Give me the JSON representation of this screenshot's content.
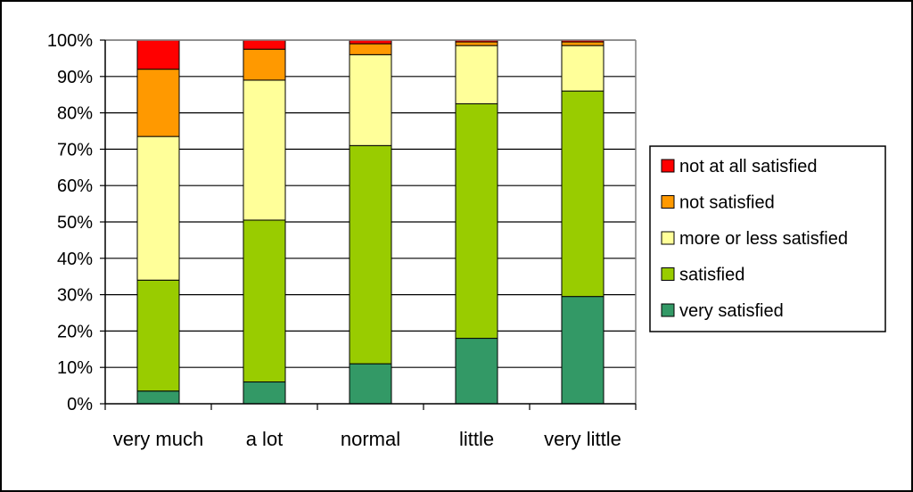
{
  "chart_data": {
    "type": "bar",
    "stacked": true,
    "percent": true,
    "categories": [
      "very much",
      "a lot",
      "normal",
      "little",
      "very little"
    ],
    "ylim": [
      0,
      100
    ],
    "yticks": [
      "0%",
      "10%",
      "20%",
      "30%",
      "40%",
      "50%",
      "60%",
      "70%",
      "80%",
      "90%",
      "100%"
    ],
    "grid": true,
    "legend": "right",
    "series": [
      {
        "name": "very satisfied",
        "color": "#339966",
        "values": [
          3.5,
          6,
          11,
          18,
          29.5
        ]
      },
      {
        "name": "satisfied",
        "color": "#99CC00",
        "values": [
          30.5,
          44.5,
          60,
          64.5,
          56.5
        ]
      },
      {
        "name": "more or less satisfied",
        "color": "#FFFF99",
        "values": [
          39.5,
          38.5,
          25,
          16,
          12.5
        ]
      },
      {
        "name": "not satisfied",
        "color": "#FF9900",
        "values": [
          18.5,
          8.5,
          3,
          1,
          1
        ]
      },
      {
        "name": "not at all satisfied",
        "color": "#FF0000",
        "values": [
          8,
          2.5,
          1,
          0.5,
          0.5
        ]
      }
    ]
  }
}
